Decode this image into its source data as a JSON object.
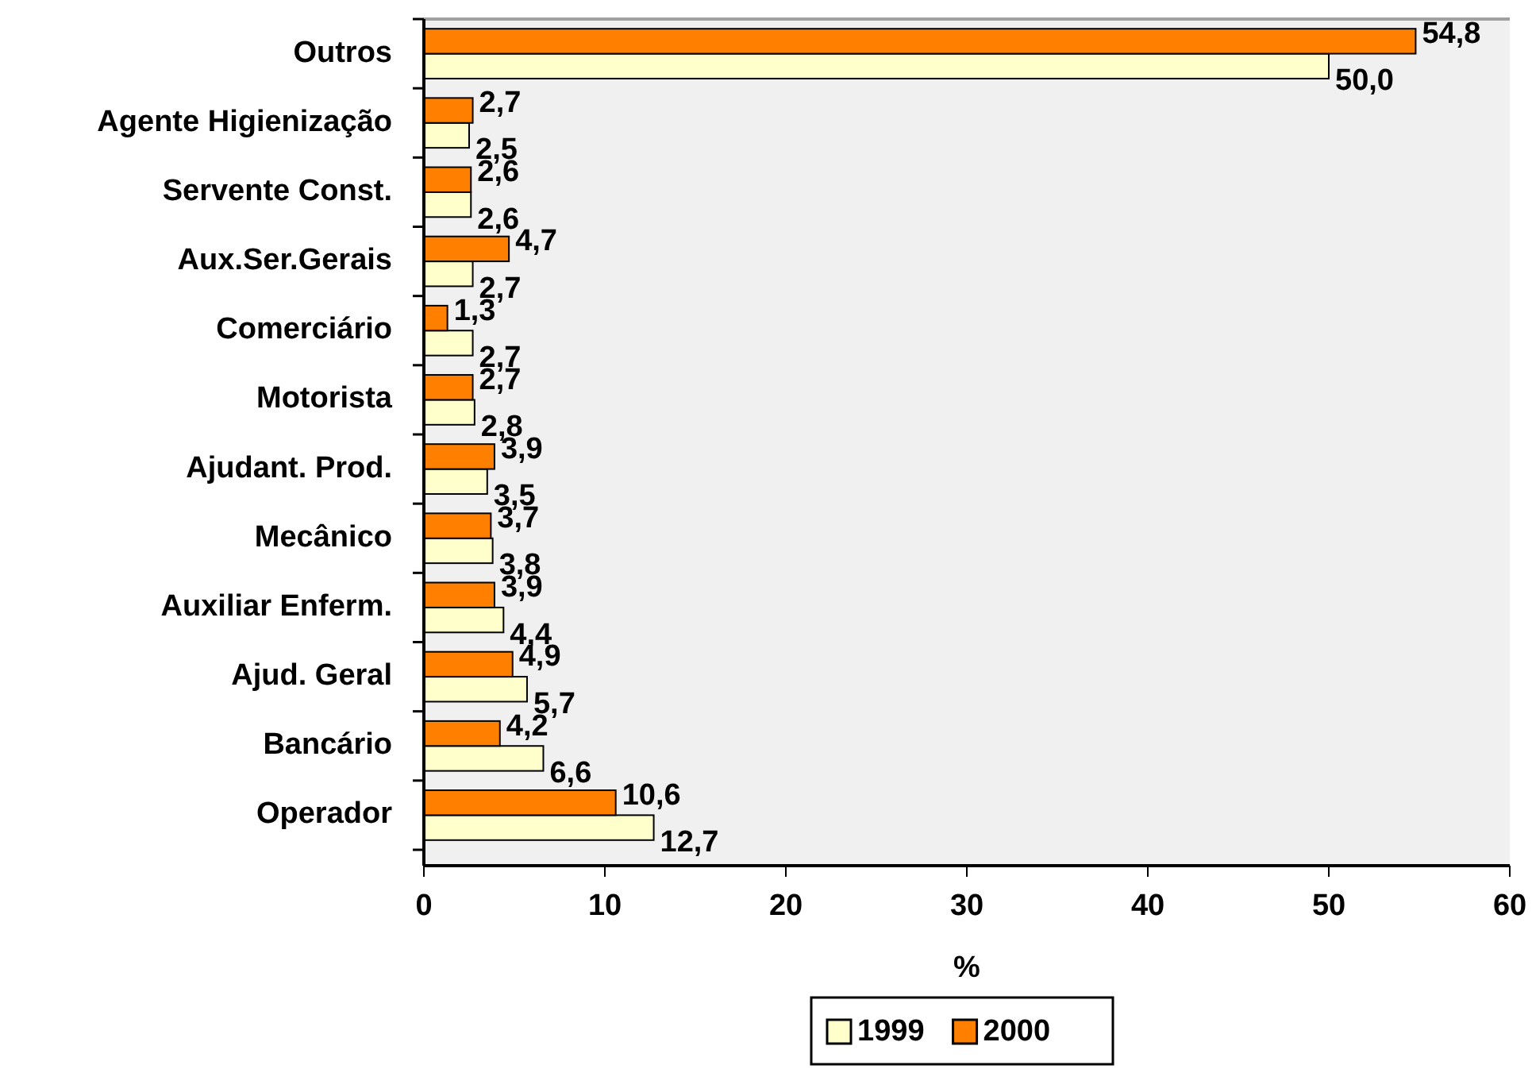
{
  "chart_data": {
    "type": "bar",
    "orientation": "horizontal",
    "xlabel": "%",
    "categories": [
      "Outros",
      "Agente Higienização",
      "Servente Const.",
      "Aux.Ser.Gerais",
      "Comerciário",
      "Motorista",
      "Ajudant. Prod.",
      "Mecânico",
      "Auxiliar Enferm.",
      "Ajud. Geral",
      "Bancário",
      "Operador"
    ],
    "series": [
      {
        "name": "1999",
        "color": "#ffffcc",
        "values": [
          50.0,
          2.5,
          2.6,
          2.7,
          2.7,
          2.8,
          3.5,
          3.8,
          4.4,
          5.7,
          6.6,
          12.7
        ],
        "value_labels": [
          "50,0",
          "2,5",
          "2,6",
          "2,7",
          "2,7",
          "2,8",
          "3,5",
          "3,8",
          "4,4",
          "5,7",
          "6,6",
          "12,7"
        ]
      },
      {
        "name": "2000",
        "color": "#ff8000",
        "values": [
          54.8,
          2.7,
          2.6,
          4.7,
          1.3,
          2.7,
          3.9,
          3.7,
          3.9,
          4.9,
          4.2,
          10.6
        ],
        "value_labels": [
          "54,8",
          "2,7",
          "2,6",
          "4,7",
          "1,3",
          "2,7",
          "3,9",
          "3,7",
          "3,9",
          "4,9",
          "4,2",
          "10,6"
        ]
      }
    ],
    "xlim": [
      0,
      60
    ],
    "xticks": [
      0,
      10,
      20,
      30,
      40,
      50,
      60
    ],
    "grid": false,
    "legend": "bottom"
  }
}
